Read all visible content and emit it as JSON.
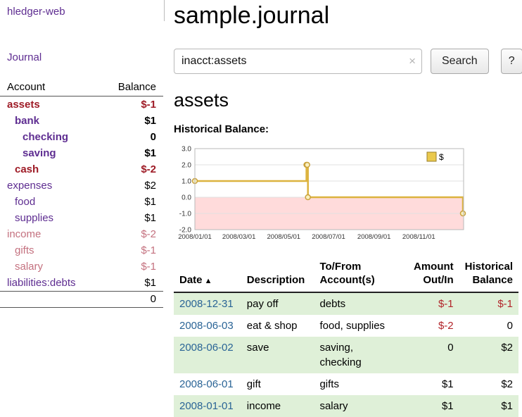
{
  "app": {
    "brand": "hledger-web",
    "nav_journal": "Journal"
  },
  "colors": {
    "link_purple": "#5e2d91",
    "negative_dark": "#9e1b26",
    "negative_soft": "#c4717f",
    "negative_table": "#b2252a",
    "date_blue": "#2a6496",
    "row_green": "#dff0d8",
    "chart_line": "#dcb33f",
    "chart_negative_bg": "#ffdbdb"
  },
  "sidebar": {
    "header": {
      "account": "Account",
      "balance": "Balance"
    },
    "accounts": [
      {
        "name": "assets",
        "balance": "$-1",
        "level": 0,
        "selected": true,
        "negative": true
      },
      {
        "name": "bank",
        "balance": "$1",
        "level": 1,
        "selected": true,
        "negative": false
      },
      {
        "name": "checking",
        "balance": "0",
        "level": 2,
        "selected": true,
        "negative": false
      },
      {
        "name": "saving",
        "balance": "$1",
        "level": 2,
        "selected": true,
        "negative": false
      },
      {
        "name": "cash",
        "balance": "$-2",
        "level": 1,
        "selected": true,
        "negative": true
      },
      {
        "name": "expenses",
        "balance": "$2",
        "level": 0,
        "selected": false,
        "negative": false
      },
      {
        "name": "food",
        "balance": "$1",
        "level": 1,
        "selected": false,
        "negative": false
      },
      {
        "name": "supplies",
        "balance": "$1",
        "level": 1,
        "selected": false,
        "negative": false
      },
      {
        "name": "income",
        "balance": "$-2",
        "level": 0,
        "selected": false,
        "negative": true
      },
      {
        "name": "gifts",
        "balance": "$-1",
        "level": 1,
        "selected": false,
        "negative": true
      },
      {
        "name": "salary",
        "balance": "$-1",
        "level": 1,
        "selected": false,
        "negative": true
      },
      {
        "name": "liabilities:debts",
        "balance": "$1",
        "level": 0,
        "selected": false,
        "negative": false
      }
    ],
    "total": "0"
  },
  "main": {
    "title": "sample.journal",
    "search": {
      "value": "inacct:assets",
      "clear": "×",
      "button": "Search",
      "help": "?"
    },
    "heading": "assets",
    "chart_label": "Historical Balance:"
  },
  "chart_data": {
    "type": "line",
    "step": true,
    "title": "Historical Balance:",
    "series": [
      {
        "name": "$",
        "color": "#dcb33f",
        "points": [
          {
            "x": "2008-01-01",
            "y": 1
          },
          {
            "x": "2008-06-01",
            "y": 2
          },
          {
            "x": "2008-06-02",
            "y": 2
          },
          {
            "x": "2008-06-03",
            "y": 0
          },
          {
            "x": "2008-12-31",
            "y": -1
          }
        ]
      }
    ],
    "xlim": [
      "2008-01-01",
      "2009-01-01"
    ],
    "ylim": [
      -2,
      3
    ],
    "yticks": [
      "3.0",
      "2.0",
      "1.0",
      "0.0",
      "-1.0",
      "-2.0"
    ],
    "xticks": [
      {
        "x": "2008-01-01",
        "label": "2008/01/01"
      },
      {
        "x": "2008-03-01",
        "label": "2008/03/01"
      },
      {
        "x": "2008-05-01",
        "label": "2008/05/01"
      },
      {
        "x": "2008-07-01",
        "label": "2008/07/01"
      },
      {
        "x": "2008-09-01",
        "label": "2008/09/01"
      },
      {
        "x": "2008-11-01",
        "label": "2008/11/01"
      }
    ],
    "legend": {
      "position": "top-right",
      "entries": [
        "$"
      ]
    },
    "negative_region": true,
    "grid": true
  },
  "register": {
    "columns": [
      {
        "label": "Date",
        "align": "left",
        "sort_icon": "▲"
      },
      {
        "label": "Description",
        "align": "left"
      },
      {
        "label": "To/From\nAccount(s)",
        "align": "left"
      },
      {
        "label": "Amount\nOut/In",
        "align": "right"
      },
      {
        "label": "Historical\nBalance",
        "align": "right"
      }
    ],
    "rows": [
      {
        "date": "2008-12-31",
        "description": "pay off",
        "accounts": "debts",
        "amount": "$-1",
        "balance": "$-1"
      },
      {
        "date": "2008-06-03",
        "description": "eat & shop",
        "accounts": "food, supplies",
        "amount": "$-2",
        "balance": "0"
      },
      {
        "date": "2008-06-02",
        "description": "save",
        "accounts": "saving,\nchecking",
        "amount": "0",
        "balance": "$2"
      },
      {
        "date": "2008-06-01",
        "description": "gift",
        "accounts": "gifts",
        "amount": "$1",
        "balance": "$2"
      },
      {
        "date": "2008-01-01",
        "description": "income",
        "accounts": "salary",
        "amount": "$1",
        "balance": "$1"
      }
    ]
  }
}
